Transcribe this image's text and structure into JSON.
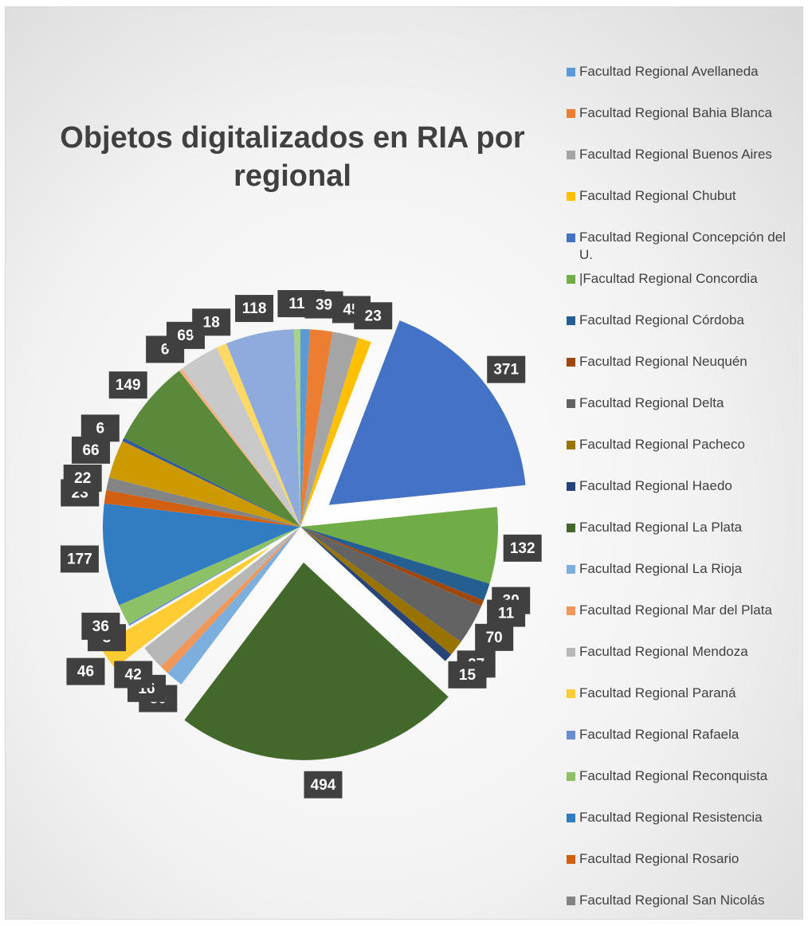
{
  "chart_data": {
    "type": "pie",
    "title": "Objetos digitalizados en RIA por regional",
    "categories": [
      "Facultad Regional Avellaneda",
      "Facultad Regional Bahia Blanca",
      "Facultad Regional Buenos Aires",
      "Facultad Regional Chubut",
      "Facultad Regional Concepción del U.",
      "|Facultad Regional Concordia",
      "Facultad Regional Córdoba",
      "Facultad Regional  Neuquén",
      "Facultad Regional Delta",
      "Facultad Regional Pacheco",
      "Facultad Regional Haedo",
      "Facultad Regional La Plata",
      "Facultad Regional La Rioja",
      "Facultad Regional Mar del Plata",
      "Facultad Regional Mendoza",
      "Facultad Regional Paraná",
      "Facultad Regional Rafaela",
      "Facultad Regional Reconquista",
      "Facultad  Regional Resistencia",
      "Facultad Regional Rosario",
      "Facultad Regional San Nicolás",
      null,
      null,
      null,
      null,
      null,
      null,
      null,
      null
    ],
    "values": [
      16,
      39,
      45,
      23,
      371,
      132,
      30,
      11,
      70,
      27,
      15,
      494,
      30,
      16,
      42,
      46,
      3,
      36,
      177,
      23,
      22,
      66,
      6,
      149,
      6,
      69,
      18,
      118,
      11
    ],
    "colors": [
      "#5b9bd5",
      "#ed7d31",
      "#a5a5a5",
      "#ffc000",
      "#4472c4",
      "#70ad47",
      "#255e91",
      "#9e480e",
      "#636363",
      "#997300",
      "#264478",
      "#43682b",
      "#7cafdd",
      "#f1975a",
      "#b7b7b7",
      "#ffcd33",
      "#698ed0",
      "#8cc168",
      "#327dc2",
      "#d26012",
      "#848484",
      "#cc9a00",
      "#335aa1",
      "#5a8a39",
      "#f4b183",
      "#c9c9c9",
      "#ffd966",
      "#8faadc",
      "#a9d18e"
    ],
    "explode": [
      4,
      11,
      15
    ]
  }
}
